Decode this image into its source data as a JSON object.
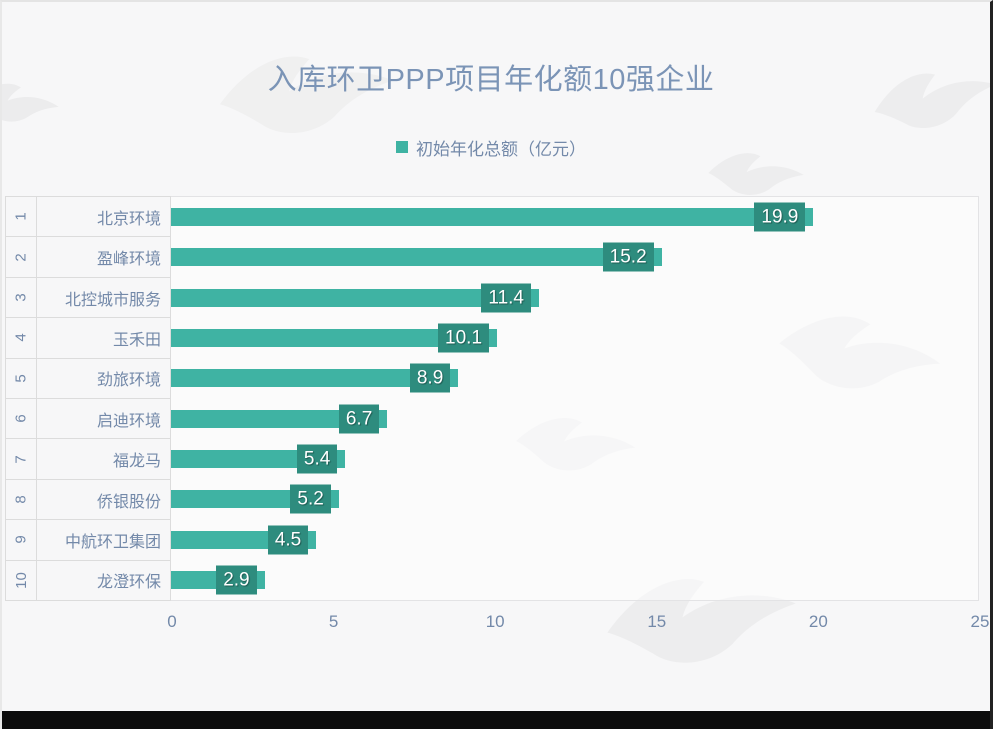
{
  "page": {
    "background": "#f7f7f8"
  },
  "chart_data": {
    "type": "bar",
    "orientation": "horizontal",
    "title": "入库环卫PPP项目年化额10强企业",
    "legend": {
      "label": "初始年化总额（亿元）",
      "position": "top"
    },
    "ranks": [
      "1",
      "2",
      "3",
      "4",
      "5",
      "6",
      "7",
      "8",
      "9",
      "10"
    ],
    "categories": [
      "北京环境",
      "盈峰环境",
      "北控城市服务",
      "玉禾田",
      "劲旅环境",
      "启迪环境",
      "福龙马",
      "侨银股份",
      "中航环卫集团",
      "龙澄环保"
    ],
    "values": [
      19.9,
      15.2,
      11.4,
      10.1,
      8.9,
      6.7,
      5.4,
      5.2,
      4.5,
      2.9
    ],
    "xlim": [
      0,
      25
    ],
    "x_ticks": [
      "0",
      "5",
      "10",
      "15",
      "20",
      "25"
    ],
    "grid": false,
    "colors": {
      "bar": "#3fb3a3",
      "label_box": "#2e8c7e",
      "value_text": "#ffffff",
      "title": "#7b94b6",
      "axis_text": "#7389a9",
      "grid_line": "#dcdcdc",
      "page_bg": "#f7f7f8"
    }
  }
}
